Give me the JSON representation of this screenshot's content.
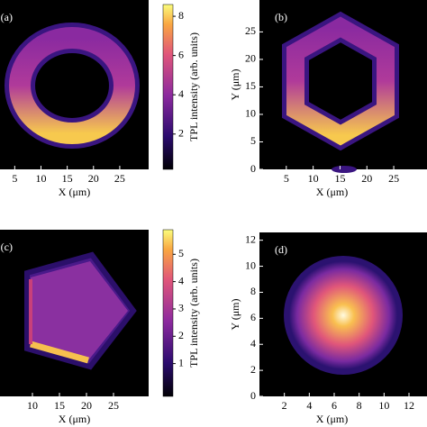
{
  "chart_data": [
    {
      "type": "heatmap",
      "label": "(a)",
      "xlabel": "X (μm)",
      "xlim": [
        2.2,
        30.5
      ],
      "xticks": [
        5,
        10,
        15,
        20,
        25
      ],
      "colorbar": {
        "label": "TPL intensity (arb. units)",
        "lim": [
          0.2,
          8.6
        ],
        "ticks": [
          2,
          4,
          6,
          8
        ]
      }
    },
    {
      "type": "heatmap",
      "label": "(b)",
      "xlabel": "X (μm)",
      "ylabel": "Y (μm)",
      "xlim": [
        0,
        27
      ],
      "xticks": [
        5,
        10,
        15,
        20,
        25
      ],
      "ylim": [
        0,
        30.8
      ],
      "yticks": [
        0,
        5,
        10,
        15,
        20,
        25
      ]
    },
    {
      "type": "heatmap",
      "label": "(c)",
      "xlabel": "X (μm)",
      "xlim": [
        4,
        31.5
      ],
      "xticks": [
        10,
        15,
        20,
        25
      ],
      "colorbar": {
        "label": "TPL intensity (arb. units)",
        "lim": [
          -0.2,
          5.9
        ],
        "ticks": [
          1,
          2,
          3,
          4,
          5
        ]
      }
    },
    {
      "type": "heatmap",
      "label": "(d)",
      "xlabel": "X (μm)",
      "ylabel": "Y (μm)",
      "xlim": [
        0,
        13.3
      ],
      "xticks": [
        2,
        4,
        6,
        8,
        10,
        12
      ],
      "ylim": [
        0,
        12.6
      ],
      "yticks": [
        0,
        2,
        4,
        6,
        8,
        10,
        12
      ]
    }
  ]
}
